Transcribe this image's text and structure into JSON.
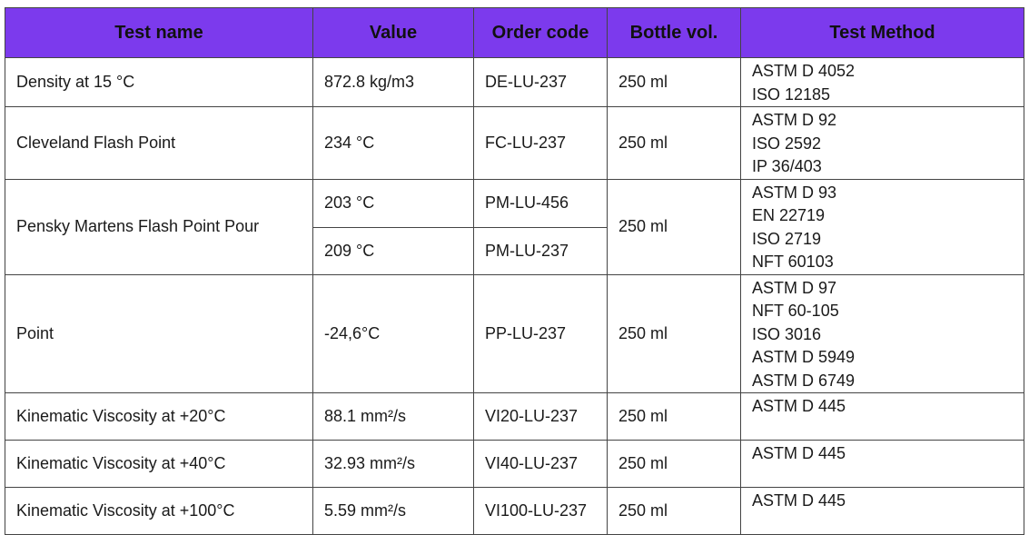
{
  "header": {
    "test_name": "Test name",
    "value": "Value",
    "order_code": "Order code",
    "bottle_vol": "Bottle vol.",
    "test_method": "Test Method"
  },
  "rows": {
    "density": {
      "name": "Density at 15 °C",
      "value": "872.8 kg/m3",
      "code": "DE-LU-237",
      "vol": "250 ml",
      "methods": [
        "ASTM D 4052",
        "ISO 12185"
      ]
    },
    "cleveland": {
      "name": "Cleveland Flash Point",
      "value": "234 °C",
      "code": "FC-LU-237",
      "vol": "250 ml",
      "methods": [
        "ASTM D 92",
        "ISO 2592",
        "IP 36/403"
      ]
    },
    "pensky": {
      "name": "Pensky Martens Flash Point Pour",
      "value_a": "203 °C",
      "code_a": "PM-LU-456",
      "value_b": "209 °C",
      "code_b": "PM-LU-237",
      "vol": "250 ml",
      "methods": [
        "ASTM D 93",
        "EN 22719",
        "ISO 2719",
        "NFT 60103"
      ]
    },
    "point": {
      "name": "Point",
      "value": "-24,6°C",
      "code": "PP-LU-237",
      "vol": "250 ml",
      "methods": [
        "ASTM D 97",
        "NFT 60-105",
        "ISO 3016",
        "ASTM D 5949",
        "ASTM D 6749"
      ]
    },
    "visc20": {
      "name": "Kinematic Viscosity at +20°C",
      "value": "88.1 mm²/s",
      "code": "VI20-LU-237",
      "vol": "250 ml",
      "methods": [
        "ASTM D 445"
      ]
    },
    "visc40": {
      "name": "Kinematic Viscosity at +40°C",
      "value": "32.93 mm²/s",
      "code": "VI40-LU-237",
      "vol": "250 ml",
      "methods": [
        "ASTM D 445"
      ]
    },
    "visc100": {
      "name": "Kinematic Viscosity at +100°C",
      "value": "5.59 mm²/s",
      "code": "VI100-LU-237",
      "vol": "250 ml",
      "methods": [
        "ASTM D 445"
      ]
    }
  }
}
